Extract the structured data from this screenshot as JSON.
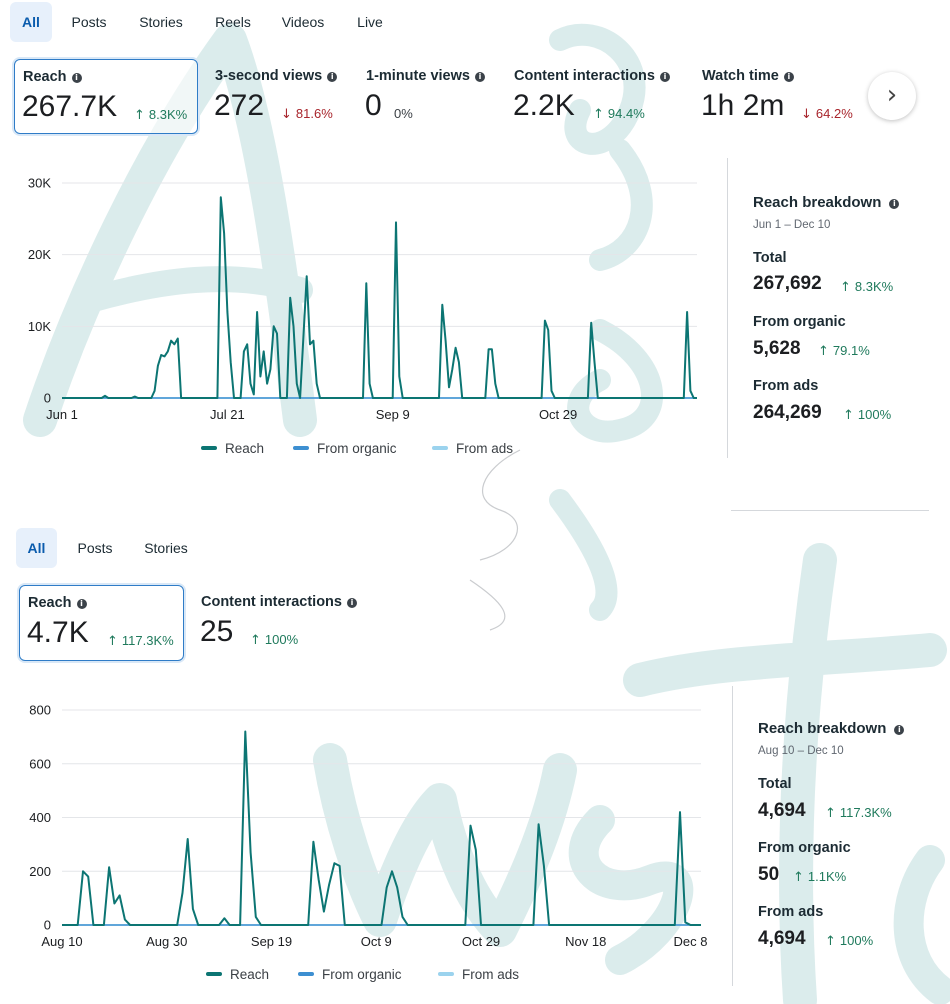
{
  "colors": {
    "reach": "#0c7573",
    "from_organic": "#3d8fd1",
    "from_ads": "#9bd3ee",
    "up": "#1f7a5c",
    "down": "#a8252c",
    "accent": "#0b5cad",
    "watermark": "#cfe6e6"
  },
  "icons": {
    "info": "info-icon",
    "up": "arrow-up-icon",
    "down": "arrow-down-icon",
    "next": "chevron-right-icon"
  },
  "top": {
    "tabs": [
      "All",
      "Posts",
      "Stories",
      "Reels",
      "Videos",
      "Live"
    ],
    "active_tab": "All",
    "metrics": [
      {
        "label": "Reach",
        "value": "267.7K",
        "change": "8.3K%",
        "direction": "up",
        "selected": true
      },
      {
        "label": "3-second views",
        "value": "272",
        "change": "81.6%",
        "direction": "down",
        "selected": false
      },
      {
        "label": "1-minute views",
        "value": "0",
        "change": "0%",
        "direction": "none",
        "selected": false
      },
      {
        "label": "Content interactions",
        "value": "2.2K",
        "change": "94.4%",
        "direction": "up",
        "selected": false
      },
      {
        "label": "Watch time",
        "value": "1h 2m",
        "change": "64.2%",
        "direction": "down",
        "selected": false
      }
    ],
    "legend": [
      "Reach",
      "From organic",
      "From ads"
    ],
    "breakdown": {
      "title": "Reach breakdown",
      "range": "Jun 1 – Dec 10",
      "rows": [
        {
          "label": "Total",
          "value": "267,692",
          "change": "8.3K%"
        },
        {
          "label": "From organic",
          "value": "5,628",
          "change": "79.1%"
        },
        {
          "label": "From ads",
          "value": "264,269",
          "change": "100%"
        }
      ]
    }
  },
  "bottom": {
    "tabs": [
      "All",
      "Posts",
      "Stories"
    ],
    "active_tab": "All",
    "metrics": [
      {
        "label": "Reach",
        "value": "4.7K",
        "change": "117.3K%",
        "direction": "up",
        "selected": true
      },
      {
        "label": "Content interactions",
        "value": "25",
        "change": "100%",
        "direction": "up",
        "selected": false
      }
    ],
    "legend": [
      "Reach",
      "From organic",
      "From ads"
    ],
    "breakdown": {
      "title": "Reach breakdown",
      "range": "Aug 10 – Dec 10",
      "rows": [
        {
          "label": "Total",
          "value": "4,694",
          "change": "117.3K%"
        },
        {
          "label": "From organic",
          "value": "50",
          "change": "1.1K%"
        },
        {
          "label": "From ads",
          "value": "4,694",
          "change": "100%"
        }
      ]
    }
  },
  "chart_data": [
    {
      "type": "line",
      "ylim": [
        0,
        30000
      ],
      "yticks": [
        0,
        10000,
        20000,
        30000
      ],
      "ytick_labels": [
        "0",
        "10K",
        "20K",
        "30K"
      ],
      "xlim": [
        "2024-06-01",
        "2024-12-10"
      ],
      "xticks": [
        "2024-06-01",
        "2024-07-21",
        "2024-09-09",
        "2024-10-29"
      ],
      "xtick_labels": [
        "Jun 1",
        "Jul 21",
        "Sep 9",
        "Oct 29"
      ],
      "legend_position": "bottom",
      "grid": true,
      "series": [
        {
          "name": "Reach",
          "color": "#0c7573",
          "points": [
            [
              "2024-06-01",
              0
            ],
            [
              "2024-06-13",
              0
            ],
            [
              "2024-06-14",
              300
            ],
            [
              "2024-06-15",
              0
            ],
            [
              "2024-06-22",
              0
            ],
            [
              "2024-06-23",
              200
            ],
            [
              "2024-06-24",
              0
            ],
            [
              "2024-06-28",
              0
            ],
            [
              "2024-06-29",
              1000
            ],
            [
              "2024-06-30",
              4500
            ],
            [
              "2024-07-01",
              6000
            ],
            [
              "2024-07-02",
              5800
            ],
            [
              "2024-07-03",
              6500
            ],
            [
              "2024-07-04",
              8000
            ],
            [
              "2024-07-05",
              7500
            ],
            [
              "2024-07-06",
              8300
            ],
            [
              "2024-07-07",
              0
            ],
            [
              "2024-07-18",
              0
            ],
            [
              "2024-07-19",
              28000
            ],
            [
              "2024-07-20",
              23000
            ],
            [
              "2024-07-21",
              12000
            ],
            [
              "2024-07-22",
              5000
            ],
            [
              "2024-07-23",
              0
            ],
            [
              "2024-07-25",
              0
            ],
            [
              "2024-07-26",
              6500
            ],
            [
              "2024-07-27",
              7500
            ],
            [
              "2024-07-28",
              2000
            ],
            [
              "2024-07-29",
              500
            ],
            [
              "2024-07-30",
              12000
            ],
            [
              "2024-07-31",
              3000
            ],
            [
              "2024-08-01",
              6500
            ],
            [
              "2024-08-02",
              2000
            ],
            [
              "2024-08-03",
              4000
            ],
            [
              "2024-08-04",
              10000
            ],
            [
              "2024-08-05",
              9000
            ],
            [
              "2024-08-06",
              0
            ],
            [
              "2024-08-08",
              0
            ],
            [
              "2024-08-09",
              14000
            ],
            [
              "2024-08-10",
              10000
            ],
            [
              "2024-08-11",
              2000
            ],
            [
              "2024-08-12",
              0
            ],
            [
              "2024-08-14",
              17000
            ],
            [
              "2024-08-15",
              7500
            ],
            [
              "2024-08-16",
              8000
            ],
            [
              "2024-08-17",
              2000
            ],
            [
              "2024-08-18",
              0
            ],
            [
              "2024-08-31",
              0
            ],
            [
              "2024-09-01",
              16000
            ],
            [
              "2024-09-02",
              2000
            ],
            [
              "2024-09-03",
              0
            ],
            [
              "2024-09-08",
              0
            ],
            [
              "2024-09-09",
              0
            ],
            [
              "2024-09-10",
              24500
            ],
            [
              "2024-09-11",
              3000
            ],
            [
              "2024-09-12",
              0
            ],
            [
              "2024-09-23",
              0
            ],
            [
              "2024-09-24",
              13000
            ],
            [
              "2024-09-25",
              8000
            ],
            [
              "2024-09-26",
              1500
            ],
            [
              "2024-09-27",
              4000
            ],
            [
              "2024-09-28",
              7000
            ],
            [
              "2024-09-29",
              5000
            ],
            [
              "2024-09-30",
              0
            ],
            [
              "2024-10-07",
              0
            ],
            [
              "2024-10-08",
              6800
            ],
            [
              "2024-10-09",
              6800
            ],
            [
              "2024-10-10",
              2000
            ],
            [
              "2024-10-11",
              0
            ],
            [
              "2024-10-24",
              0
            ],
            [
              "2024-10-25",
              10800
            ],
            [
              "2024-10-26",
              9500
            ],
            [
              "2024-10-27",
              1000
            ],
            [
              "2024-10-28",
              0
            ],
            [
              "2024-11-07",
              0
            ],
            [
              "2024-11-08",
              10500
            ],
            [
              "2024-11-09",
              5000
            ],
            [
              "2024-11-10",
              0
            ],
            [
              "2024-12-06",
              0
            ],
            [
              "2024-12-07",
              12000
            ],
            [
              "2024-12-08",
              1000
            ],
            [
              "2024-12-09",
              0
            ],
            [
              "2024-12-10",
              0
            ]
          ]
        },
        {
          "name": "From organic",
          "color": "#3d8fd1",
          "points": [
            [
              "2024-06-01",
              0
            ],
            [
              "2024-12-10",
              0
            ]
          ]
        },
        {
          "name": "From ads",
          "color": "#9bd3ee",
          "points": [
            [
              "2024-06-01",
              0
            ],
            [
              "2024-12-10",
              0
            ]
          ]
        }
      ]
    },
    {
      "type": "line",
      "ylim": [
        0,
        800
      ],
      "yticks": [
        0,
        200,
        400,
        600,
        800
      ],
      "ytick_labels": [
        "0",
        "200",
        "400",
        "600",
        "800"
      ],
      "xlim": [
        "2024-08-10",
        "2024-12-10"
      ],
      "xticks": [
        "2024-08-10",
        "2024-08-30",
        "2024-09-19",
        "2024-10-09",
        "2024-10-29",
        "2024-11-18",
        "2024-12-08"
      ],
      "xtick_labels": [
        "Aug 10",
        "Aug 30",
        "Sep 19",
        "Oct 9",
        "Oct 29",
        "Nov 18",
        "Dec 8"
      ],
      "legend_position": "bottom",
      "grid": true,
      "series": [
        {
          "name": "Reach",
          "color": "#0c7573",
          "points": [
            [
              "2024-08-10",
              0
            ],
            [
              "2024-08-13",
              0
            ],
            [
              "2024-08-14",
              200
            ],
            [
              "2024-08-15",
              180
            ],
            [
              "2024-08-16",
              0
            ],
            [
              "2024-08-18",
              0
            ],
            [
              "2024-08-19",
              215
            ],
            [
              "2024-08-20",
              80
            ],
            [
              "2024-08-21",
              110
            ],
            [
              "2024-08-22",
              20
            ],
            [
              "2024-08-23",
              0
            ],
            [
              "2024-09-01",
              0
            ],
            [
              "2024-09-02",
              120
            ],
            [
              "2024-09-03",
              320
            ],
            [
              "2024-09-04",
              60
            ],
            [
              "2024-09-05",
              0
            ],
            [
              "2024-09-09",
              0
            ],
            [
              "2024-09-10",
              25
            ],
            [
              "2024-09-11",
              0
            ],
            [
              "2024-09-13",
              0
            ],
            [
              "2024-09-14",
              720
            ],
            [
              "2024-09-15",
              270
            ],
            [
              "2024-09-16",
              30
            ],
            [
              "2024-09-17",
              0
            ],
            [
              "2024-09-26",
              0
            ],
            [
              "2024-09-27",
              310
            ],
            [
              "2024-09-28",
              170
            ],
            [
              "2024-09-29",
              50
            ],
            [
              "2024-09-30",
              150
            ],
            [
              "2024-10-01",
              230
            ],
            [
              "2024-10-02",
              220
            ],
            [
              "2024-10-03",
              0
            ],
            [
              "2024-10-10",
              0
            ],
            [
              "2024-10-11",
              140
            ],
            [
              "2024-10-12",
              200
            ],
            [
              "2024-10-13",
              140
            ],
            [
              "2024-10-14",
              30
            ],
            [
              "2024-10-15",
              0
            ],
            [
              "2024-10-26",
              0
            ],
            [
              "2024-10-27",
              370
            ],
            [
              "2024-10-28",
              280
            ],
            [
              "2024-10-29",
              0
            ],
            [
              "2024-11-08",
              0
            ],
            [
              "2024-11-09",
              375
            ],
            [
              "2024-11-10",
              220
            ],
            [
              "2024-11-11",
              0
            ],
            [
              "2024-12-05",
              0
            ],
            [
              "2024-12-06",
              420
            ],
            [
              "2024-12-07",
              10
            ],
            [
              "2024-12-08",
              0
            ],
            [
              "2024-12-10",
              0
            ]
          ]
        },
        {
          "name": "From organic",
          "color": "#3d8fd1",
          "points": [
            [
              "2024-08-10",
              0
            ],
            [
              "2024-12-10",
              0
            ]
          ]
        },
        {
          "name": "From ads",
          "color": "#9bd3ee",
          "points": [
            [
              "2024-08-10",
              0
            ],
            [
              "2024-12-10",
              0
            ]
          ]
        }
      ]
    }
  ]
}
